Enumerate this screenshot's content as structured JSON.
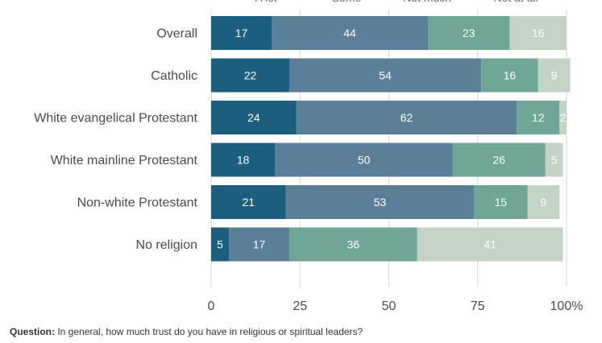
{
  "chart_data": {
    "type": "bar",
    "orientation": "horizontal",
    "stacked": true,
    "title": "",
    "xlabel": "",
    "ylabel": "",
    "xlim": [
      0,
      100
    ],
    "x_ticks": [
      "0",
      "25",
      "50",
      "75",
      "100%"
    ],
    "x_tick_values": [
      0,
      25,
      50,
      75,
      100
    ],
    "grid": true,
    "legend": "top",
    "legend_labels": [
      "A lot",
      "Some",
      "Not much",
      "Not at all"
    ],
    "categories": [
      "Overall",
      "Catholic",
      "White evangelical Protestant",
      "White mainline Protestant",
      "Non-white Protestant",
      "No religion"
    ],
    "series": [
      {
        "name": "A lot",
        "color": "#1b5e7e",
        "values": [
          17,
          22,
          24,
          18,
          21,
          5
        ]
      },
      {
        "name": "Some",
        "color": "#5a7f96",
        "values": [
          44,
          54,
          62,
          50,
          53,
          17
        ]
      },
      {
        "name": "Not much",
        "color": "#6fa696",
        "values": [
          23,
          16,
          12,
          26,
          15,
          36
        ]
      },
      {
        "name": "Not at all",
        "color": "#c3d4c6",
        "values": [
          16,
          9,
          2,
          5,
          9,
          41
        ]
      }
    ]
  },
  "footer": {
    "question_label": "Question:",
    "question_text": "In general, how much trust do you have in religious or spiritual leaders?"
  }
}
